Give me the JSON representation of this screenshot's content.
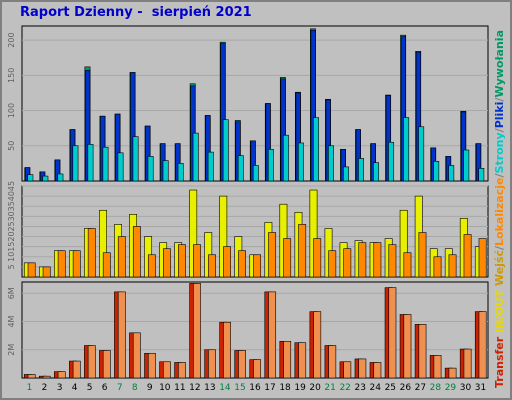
{
  "title": "Raport Dzienny -  sierpień 2021",
  "side_legend": [
    {
      "text": "Transfer",
      "color": "#cc2200"
    },
    {
      "text": " IN/OUT ",
      "color": "#e8d800"
    },
    {
      "text": "Wejść",
      "color": "#cc9900"
    },
    {
      "text": "/",
      "color": "#808080"
    },
    {
      "text": "Lokalizacje",
      "color": "#ff8800"
    },
    {
      "text": "/",
      "color": "#808080"
    },
    {
      "text": "Strony",
      "color": "#00cccc"
    },
    {
      "text": "/",
      "color": "#808080"
    },
    {
      "text": "Pliki",
      "color": "#0033cc"
    },
    {
      "text": "/",
      "color": "#808080"
    },
    {
      "text": "Wywołania",
      "color": "#009966"
    }
  ],
  "chart_data": [
    {
      "type": "bar",
      "name_hidden": true,
      "ylim": [
        0,
        220
      ],
      "yticks": [
        "200",
        "150",
        "100",
        "50"
      ],
      "ytick_values": [
        200,
        150,
        100,
        50
      ],
      "x": [
        "1",
        "2",
        "3",
        "4",
        "5",
        "6",
        "7",
        "8",
        "9",
        "10",
        "11",
        "12",
        "13",
        "14",
        "15",
        "16",
        "17",
        "18",
        "19",
        "20",
        "21",
        "22",
        "23",
        "24",
        "25",
        "26",
        "27",
        "28",
        "29",
        "30",
        "31"
      ],
      "weekend_days": [
        "1",
        "7",
        "8",
        "14",
        "15",
        "21",
        "22",
        "28",
        "29"
      ],
      "series": [
        {
          "color": "#009966",
          "values": [
            19,
            13,
            30,
            73,
            162,
            92,
            95,
            154,
            78,
            53,
            53,
            138,
            93,
            197,
            86,
            57,
            110,
            147,
            126,
            216,
            116,
            45,
            73,
            53,
            122,
            207,
            184,
            47,
            35,
            99,
            53
          ]
        },
        {
          "color": "#0033cc",
          "values": [
            19,
            13,
            30,
            73,
            157,
            92,
            95,
            154,
            78,
            53,
            53,
            135,
            93,
            195,
            84,
            57,
            110,
            145,
            125,
            214,
            115,
            45,
            73,
            53,
            121,
            205,
            183,
            47,
            35,
            98,
            53
          ]
        },
        {
          "color": "#00cccc",
          "values": [
            9,
            7,
            10,
            50,
            52,
            48,
            40,
            63,
            35,
            29,
            25,
            68,
            41,
            87,
            36,
            22,
            45,
            65,
            54,
            90,
            50,
            20,
            32,
            26,
            55,
            90,
            77,
            28,
            22,
            44,
            18
          ]
        }
      ]
    },
    {
      "type": "bar",
      "ylim": [
        0,
        45
      ],
      "yticks": [
        "45",
        "40",
        "35",
        "30",
        "25",
        "20",
        "15",
        "10",
        "5"
      ],
      "ytick_values": [
        45,
        40,
        35,
        30,
        25,
        20,
        15,
        10,
        5
      ],
      "x": [
        "1",
        "2",
        "3",
        "4",
        "5",
        "6",
        "7",
        "8",
        "9",
        "10",
        "11",
        "12",
        "13",
        "14",
        "15",
        "16",
        "17",
        "18",
        "19",
        "20",
        "21",
        "22",
        "23",
        "24",
        "25",
        "26",
        "27",
        "28",
        "29",
        "30",
        "31"
      ],
      "series": [
        {
          "color": "#e8f000",
          "values": [
            7,
            5,
            13,
            13,
            24,
            33,
            26,
            31,
            20,
            17,
            17,
            43,
            22,
            40,
            20,
            11,
            27,
            36,
            32,
            43,
            24,
            17,
            18,
            17,
            19,
            33,
            40,
            14,
            14,
            29,
            15
          ]
        },
        {
          "color": "#ff8800",
          "values": [
            7,
            5,
            13,
            13,
            24,
            12,
            20,
            25,
            11,
            14,
            16,
            16,
            11,
            15,
            13,
            11,
            22,
            19,
            26,
            19,
            13,
            14,
            17,
            17,
            16,
            12,
            22,
            10,
            11,
            21,
            19
          ]
        }
      ]
    },
    {
      "type": "bar",
      "ylim": [
        0,
        6800000
      ],
      "yticks": [
        "6M",
        "4M",
        "2M"
      ],
      "ytick_values": [
        6000000,
        4000000,
        2000000
      ],
      "x": [
        "1",
        "2",
        "3",
        "4",
        "5",
        "6",
        "7",
        "8",
        "9",
        "10",
        "11",
        "12",
        "13",
        "14",
        "15",
        "16",
        "17",
        "18",
        "19",
        "20",
        "21",
        "22",
        "23",
        "24",
        "25",
        "26",
        "27",
        "28",
        "29",
        "30",
        "31"
      ],
      "series": [
        {
          "color": "#cc2200",
          "values": [
            250000,
            130000,
            450000,
            1200000,
            2300000,
            1950000,
            6100000,
            3200000,
            1750000,
            1150000,
            1100000,
            6700000,
            2000000,
            3950000,
            1950000,
            1300000,
            6100000,
            2600000,
            2500000,
            4700000,
            2300000,
            1150000,
            1350000,
            1100000,
            6400000,
            4500000,
            3800000,
            1600000,
            700000,
            2050000,
            4700000
          ]
        },
        {
          "color": "#f09050",
          "values": [
            250000,
            130000,
            450000,
            1200000,
            2300000,
            1950000,
            6100000,
            3200000,
            1750000,
            1150000,
            1100000,
            6700000,
            2000000,
            3950000,
            1950000,
            1300000,
            6100000,
            2600000,
            2500000,
            4700000,
            2300000,
            1150000,
            1350000,
            1100000,
            6400000,
            4500000,
            3800000,
            1600000,
            700000,
            2050000,
            4700000
          ]
        }
      ]
    }
  ]
}
